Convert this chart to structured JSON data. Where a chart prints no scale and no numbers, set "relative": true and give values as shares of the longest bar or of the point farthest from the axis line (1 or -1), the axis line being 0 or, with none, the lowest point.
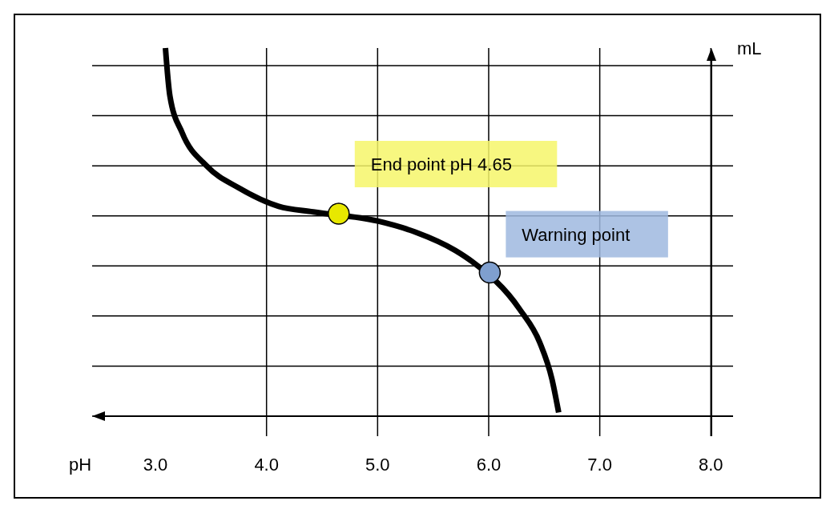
{
  "chart_data": {
    "type": "line",
    "xlabel": "pH",
    "ylabel": "mL",
    "relative": true,
    "xlim": [
      2.43,
      8.2
    ],
    "xticks": [
      {
        "value": 3,
        "label": "3.0"
      },
      {
        "value": 4,
        "label": "4.0"
      },
      {
        "value": 5,
        "label": "5.0"
      },
      {
        "value": 6,
        "label": "6.0"
      },
      {
        "value": 7,
        "label": "7.0"
      },
      {
        "value": 8,
        "label": "8.0"
      }
    ],
    "grid": true,
    "marker": "none",
    "line_style": "solid",
    "series": [
      {
        "color": "#000000",
        "x": [
          3.09,
          3.13,
          3.24,
          3.46,
          3.75,
          4.11,
          4.42,
          5.0,
          5.34,
          5.7,
          5.85,
          6.28,
          6.46,
          6.57,
          6.63
        ],
        "values": [
          1.0,
          0.87,
          0.77,
          0.68,
          0.62,
          0.57,
          0.555,
          0.53,
          0.5,
          0.45,
          0.42,
          0.29,
          0.2,
          0.1,
          0.01
        ]
      },
      {
        "type": "scatter",
        "marker": "circle",
        "colors": [
          "#e8e800",
          "#7f9fcf"
        ],
        "x": [
          4.65,
          6.01
        ],
        "values": [
          0.55,
          0.39
        ]
      }
    ],
    "annotations": [
      {
        "text": "End point pH 4.65",
        "x": 4.65,
        "y": 0.55
      },
      {
        "text": "Warning point",
        "x": 6.01,
        "y": 0.39
      }
    ]
  }
}
